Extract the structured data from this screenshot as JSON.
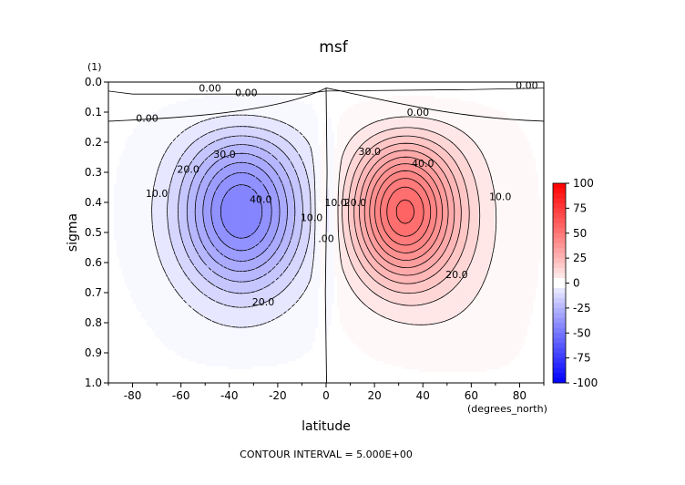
{
  "chart_data": {
    "type": "contour",
    "title": "msf",
    "xlabel": "latitude",
    "x_units": "(degrees_north)",
    "ylabel": "sigma",
    "y_units": "(1)",
    "xlim": [
      -90,
      90
    ],
    "ylim": [
      0.0,
      1.0
    ],
    "y_inverted": true,
    "xticks": [
      -80,
      -60,
      -40,
      -20,
      0,
      20,
      40,
      60,
      80
    ],
    "xtick_labels": [
      "-80",
      "-60",
      "-40",
      "-20",
      "0",
      "20",
      "40",
      "60",
      "80"
    ],
    "yticks": [
      0.0,
      0.1,
      0.2,
      0.3,
      0.4,
      0.5,
      0.6,
      0.7,
      0.8,
      0.9,
      1.0
    ],
    "ytick_labels": [
      "0.0",
      "0.1",
      "0.2",
      "0.3",
      "0.4",
      "0.5",
      "0.6",
      "0.7",
      "0.8",
      "0.9",
      "1.0"
    ],
    "contour_interval": 5.0,
    "footer": "CONTOUR INTERVAL = 5.000E+00",
    "colorbar": {
      "range": [
        -100,
        100
      ],
      "ticks": [
        100,
        75,
        50,
        25,
        0,
        -25,
        -50,
        -75,
        -100
      ],
      "tick_labels": [
        "100",
        "75",
        "50",
        "25",
        "0",
        "-25",
        "-50",
        "-75",
        "-100"
      ],
      "colors": {
        "positive": "#ff0000",
        "negative": "#0000ff",
        "zero": "#ffffff"
      }
    },
    "cells": [
      {
        "name": "southern cell (negative, clockwise)",
        "center_lat": -35,
        "center_sigma": 0.43,
        "extreme": -45
      },
      {
        "name": "northern cell (positive, counter-clockwise)",
        "center_lat": 32,
        "center_sigma": 0.43,
        "extreme": 55
      }
    ],
    "contour_labels": [
      {
        "text": "0.00",
        "lat": -48,
        "sigma": 0.02
      },
      {
        "text": "0.00",
        "lat": -33,
        "sigma": 0.035
      },
      {
        "text": "0.00",
        "lat": 83,
        "sigma": 0.01
      },
      {
        "text": "0.00",
        "lat": -74,
        "sigma": 0.12
      },
      {
        "text": "0.00",
        "lat": 38,
        "sigma": 0.1
      },
      {
        "text": "10.0",
        "lat": -70,
        "sigma": 0.37
      },
      {
        "text": "20.0",
        "lat": -57,
        "sigma": 0.29
      },
      {
        "text": "30.0",
        "lat": -42,
        "sigma": 0.24
      },
      {
        "text": "40.0",
        "lat": -27,
        "sigma": 0.39
      },
      {
        "text": "10.0",
        "lat": -6,
        "sigma": 0.45
      },
      {
        "text": ".00",
        "lat": 0,
        "sigma": 0.52
      },
      {
        "text": "10.0",
        "lat": 4,
        "sigma": 0.4
      },
      {
        "text": "20.0",
        "lat": 12,
        "sigma": 0.4
      },
      {
        "text": "30.0",
        "lat": 18,
        "sigma": 0.23
      },
      {
        "text": "40.0",
        "lat": 40,
        "sigma": 0.27
      },
      {
        "text": "10.0",
        "lat": 72,
        "sigma": 0.38
      },
      {
        "text": "20.0",
        "lat": 54,
        "sigma": 0.64
      },
      {
        "text": "20.0",
        "lat": -26,
        "sigma": 0.73
      }
    ]
  }
}
